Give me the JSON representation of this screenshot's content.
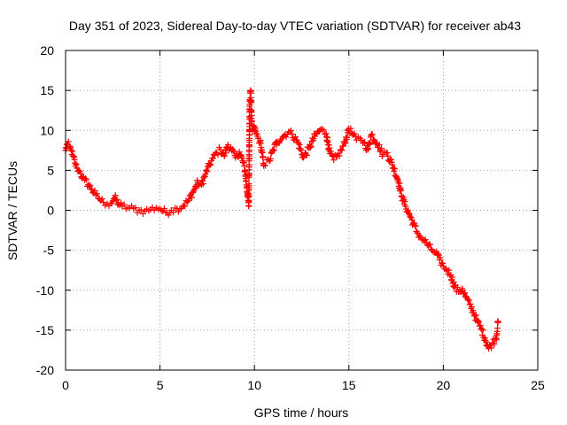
{
  "chart_data": {
    "type": "scatter",
    "title": "Day 351 of 2023, Sidereal Day-to-day VTEC variation (SDTVAR) for receiver ab43",
    "xlabel": "GPS time / hours",
    "ylabel": "SDTVAR / TECUs",
    "xlim": [
      0,
      25
    ],
    "ylim": [
      -20,
      20
    ],
    "x_ticks": [
      0,
      5,
      10,
      15,
      20,
      25
    ],
    "y_ticks": [
      -20,
      -15,
      -10,
      -5,
      0,
      5,
      10,
      15,
      20
    ],
    "x_tick_labels": [
      "0",
      "5",
      "10",
      "15",
      "20",
      "25"
    ],
    "y_tick_labels": [
      "-20",
      "-15",
      "-10",
      "-5",
      "0",
      "5",
      "10",
      "15",
      "20"
    ],
    "grid": true,
    "marker": "+",
    "marker_color": "#ff0000",
    "series": [
      {
        "name": "SDTVAR",
        "x": [
          0.0,
          0.1,
          0.2,
          0.3,
          0.4,
          0.5,
          0.6,
          0.7,
          0.8,
          0.9,
          1.0,
          1.2,
          1.4,
          1.6,
          1.8,
          2.0,
          2.2,
          2.4,
          2.6,
          2.8,
          3.0,
          3.3,
          3.6,
          3.9,
          4.2,
          4.5,
          4.8,
          5.0,
          5.3,
          5.6,
          5.9,
          6.2,
          6.5,
          6.8,
          7.0,
          7.2,
          7.4,
          7.6,
          7.8,
          8.0,
          8.2,
          8.4,
          8.6,
          8.8,
          9.0,
          9.2,
          9.4,
          9.5,
          9.6,
          9.7,
          9.75,
          9.8,
          9.85,
          9.9,
          10.0,
          10.1,
          10.2,
          10.3,
          10.5,
          10.8,
          11.0,
          11.2,
          11.5,
          11.8,
          12.0,
          12.3,
          12.6,
          12.9,
          13.2,
          13.5,
          13.8,
          14.0,
          14.2,
          14.4,
          14.6,
          14.8,
          15.0,
          15.2,
          15.4,
          15.6,
          15.8,
          16.0,
          16.2,
          16.5,
          16.8,
          17.0,
          17.3,
          17.6,
          17.8,
          18.0,
          18.2,
          18.4,
          18.6,
          18.8,
          19.0,
          19.2,
          19.4,
          19.6,
          19.8,
          20.0,
          20.2,
          20.4,
          20.6,
          20.8,
          21.0,
          21.2,
          21.4,
          21.6,
          21.8,
          22.0,
          22.2,
          22.4,
          22.6,
          22.8,
          22.9
        ],
        "y": [
          7.5,
          8.3,
          8.0,
          7.5,
          6.8,
          5.9,
          5.3,
          5.0,
          4.6,
          4.1,
          3.8,
          3.2,
          2.6,
          1.9,
          1.4,
          1.0,
          0.8,
          0.9,
          1.6,
          0.8,
          0.5,
          0.3,
          0.2,
          0.0,
          -0.1,
          0.1,
          0.3,
          0.2,
          -0.3,
          0.0,
          0.2,
          0.5,
          1.2,
          2.5,
          3.5,
          3.2,
          4.5,
          5.6,
          6.5,
          7.2,
          7.6,
          6.8,
          8.2,
          7.5,
          6.6,
          7.3,
          6.0,
          5.0,
          2.8,
          0.5,
          13.8,
          15.0,
          11.2,
          9.9,
          10.4,
          9.6,
          9.0,
          8.6,
          5.7,
          6.2,
          7.6,
          8.6,
          9.2,
          9.8,
          9.5,
          8.5,
          6.6,
          7.8,
          9.3,
          10.1,
          9.6,
          7.1,
          6.3,
          6.8,
          7.5,
          8.6,
          10.2,
          9.5,
          8.8,
          9.0,
          8.5,
          7.6,
          9.5,
          8.4,
          7.0,
          7.2,
          5.7,
          3.8,
          1.8,
          0.5,
          -0.5,
          -1.6,
          -2.7,
          -3.4,
          -3.8,
          -4.4,
          -5.0,
          -5.3,
          -6.2,
          -7.0,
          -7.5,
          -8.1,
          -9.6,
          -10.2,
          -9.8,
          -10.9,
          -11.8,
          -12.8,
          -13.9,
          -14.8,
          -16.0,
          -17.3,
          -16.6,
          -16.0,
          -13.9
        ]
      }
    ]
  }
}
